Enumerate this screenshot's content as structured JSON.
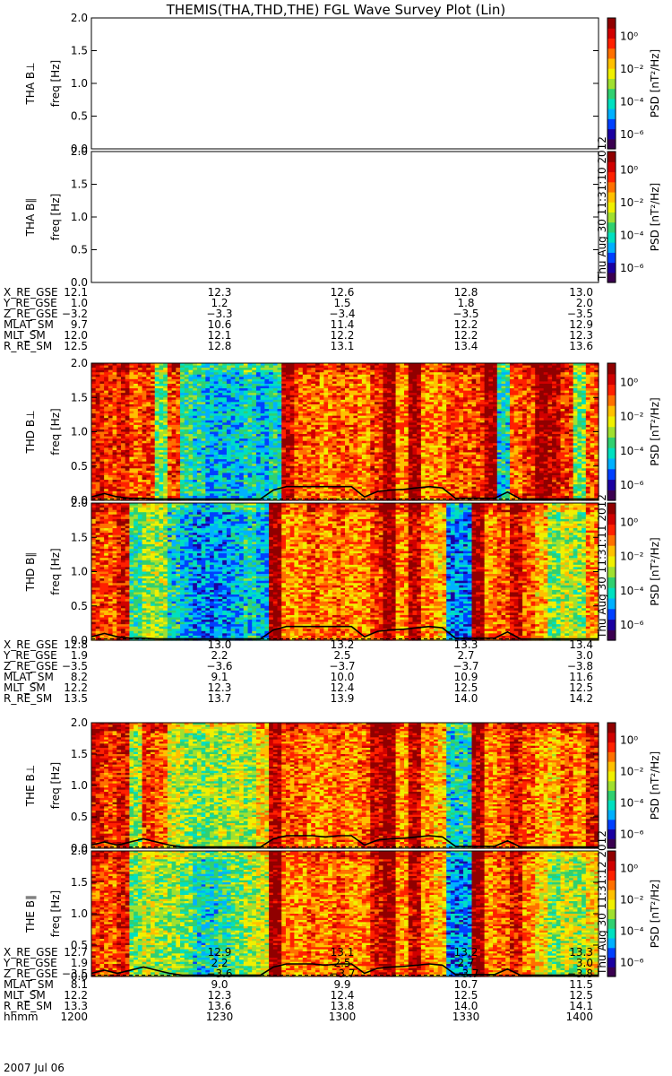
{
  "title": "THEMIS(THA,THD,THE) FGL Wave Survey Plot (Lin)",
  "date_label": "2007 Jul 06",
  "colors": {
    "colormap": [
      "#3a0050",
      "#1a00a0",
      "#0040ff",
      "#00b0ff",
      "#00e0c0",
      "#30d070",
      "#a0e030",
      "#f0f000",
      "#ffc000",
      "#ff7000",
      "#ff2000",
      "#d00000",
      "#900000"
    ],
    "curve": "#000000"
  },
  "chart_data": [
    {
      "type": "heatmap",
      "probe": "THA",
      "panel_label": "THA B⊥",
      "ylabel": "freq [Hz]",
      "y_ticks": [
        "0.0",
        "0.5",
        "1.0",
        "1.5",
        "2.0"
      ],
      "ylim": [
        0,
        2.0
      ],
      "colorbar_label": "PSD [nT²/Hz]",
      "colorbar_ticks": [
        "10⁰",
        "10⁻²",
        "10⁻⁴",
        "10⁻⁶"
      ],
      "has_data": false,
      "stamp": ""
    },
    {
      "type": "heatmap",
      "probe": "THA",
      "panel_label": "THA B∥",
      "ylabel": "freq [Hz]",
      "y_ticks": [
        "0.0",
        "0.5",
        "1.0",
        "1.5",
        "2.0"
      ],
      "ylim": [
        0,
        2.0
      ],
      "colorbar_label": "PSD [nT²/Hz]",
      "colorbar_ticks": [
        "10⁰",
        "10⁻²",
        "10⁻⁴",
        "10⁻⁶"
      ],
      "has_data": false,
      "stamp": "Thu Aug 30 11:31:10 2012"
    },
    {
      "type": "heatmap",
      "probe": "THD",
      "panel_label": "THD B⊥",
      "ylabel": "freq [Hz]",
      "y_ticks": [
        "0.0",
        "0.5",
        "1.0",
        "1.5",
        "2.0"
      ],
      "ylim": [
        0,
        2.0
      ],
      "colorbar_label": "PSD [nT²/Hz]",
      "colorbar_ticks": [
        "10⁰",
        "10⁻²",
        "10⁻⁴",
        "10⁻⁶"
      ],
      "has_data": true,
      "stamp": "",
      "column_profile": [
        0.85,
        0.8,
        0.85,
        0.75,
        0.8,
        0.45,
        0.8,
        0.4,
        0.35,
        0.3,
        0.3,
        0.3,
        0.35,
        0.3,
        0.35,
        0.9,
        0.75,
        0.75,
        0.7,
        0.75,
        0.75,
        0.7,
        0.8,
        0.95,
        0.7,
        0.95,
        0.7,
        0.7,
        0.8,
        0.75,
        0.8,
        0.95,
        0.35,
        0.75,
        0.8,
        0.95,
        0.9,
        0.8,
        0.45,
        0.75
      ],
      "curve": [
        0.05,
        0.1,
        0.05,
        0.03,
        0.03,
        0.02,
        0.02,
        0.02,
        0.02,
        0.02,
        0.02,
        0.02,
        0.02,
        0.02,
        0.15,
        0.2,
        0.2,
        0.2,
        0.2,
        0.2,
        0.2,
        0.05,
        0.13,
        0.15,
        0.16,
        0.18,
        0.2,
        0.18,
        0.03,
        0.03,
        0.03,
        0.03,
        0.12,
        0.02,
        0.02,
        0.02,
        0.02,
        0.02,
        0.02,
        0.02
      ],
      "dashed_level": 0.02
    },
    {
      "type": "heatmap",
      "probe": "THD",
      "panel_label": "THD B∥",
      "ylabel": "freq [Hz]",
      "y_ticks": [
        "0.0",
        "0.5",
        "1.0",
        "1.5",
        "2.0"
      ],
      "ylim": [
        0,
        2.0
      ],
      "colorbar_label": "PSD [nT²/Hz]",
      "colorbar_ticks": [
        "10⁰",
        "10⁻²",
        "10⁻⁴",
        "10⁻⁶"
      ],
      "has_data": true,
      "stamp": "Thu Aug 30 11:31:11 2012",
      "column_profile": [
        0.8,
        0.75,
        0.85,
        0.4,
        0.5,
        0.5,
        0.35,
        0.3,
        0.25,
        0.25,
        0.25,
        0.3,
        0.35,
        0.3,
        0.95,
        0.7,
        0.7,
        0.75,
        0.7,
        0.75,
        0.7,
        0.7,
        0.8,
        0.95,
        0.7,
        0.9,
        0.7,
        0.65,
        0.25,
        0.25,
        0.95,
        0.7,
        0.75,
        0.9,
        0.75,
        0.65,
        0.45,
        0.55,
        0.5,
        0.7
      ],
      "curve": [
        0.05,
        0.1,
        0.05,
        0.03,
        0.03,
        0.02,
        0.02,
        0.02,
        0.02,
        0.02,
        0.02,
        0.02,
        0.02,
        0.02,
        0.15,
        0.2,
        0.2,
        0.2,
        0.2,
        0.2,
        0.2,
        0.05,
        0.13,
        0.15,
        0.16,
        0.18,
        0.2,
        0.18,
        0.03,
        0.03,
        0.03,
        0.03,
        0.12,
        0.02,
        0.02,
        0.02,
        0.02,
        0.02,
        0.02,
        0.02
      ],
      "dashed_level": 0.02
    },
    {
      "type": "heatmap",
      "probe": "THE",
      "panel_label": "THE B⊥",
      "ylabel": "freq [Hz]",
      "y_ticks": [
        "0.0",
        "0.5",
        "1.0",
        "1.5",
        "2.0"
      ],
      "ylim": [
        0,
        2.0
      ],
      "colorbar_label": "PSD [nT²/Hz]",
      "colorbar_ticks": [
        "10⁰",
        "10⁻²",
        "10⁻⁴",
        "10⁻⁶"
      ],
      "has_data": true,
      "stamp": "",
      "column_profile": [
        0.85,
        0.8,
        0.85,
        0.5,
        0.8,
        0.75,
        0.55,
        0.5,
        0.45,
        0.5,
        0.5,
        0.55,
        0.5,
        0.6,
        0.9,
        0.75,
        0.75,
        0.7,
        0.7,
        0.75,
        0.7,
        0.75,
        0.9,
        0.95,
        0.7,
        0.9,
        0.7,
        0.65,
        0.35,
        0.35,
        0.9,
        0.7,
        0.75,
        0.85,
        0.75,
        0.7,
        0.65,
        0.75,
        0.7,
        0.85
      ],
      "curve": [
        0.05,
        0.1,
        0.05,
        0.1,
        0.15,
        0.1,
        0.05,
        0.02,
        0.02,
        0.02,
        0.02,
        0.02,
        0.02,
        0.02,
        0.15,
        0.2,
        0.2,
        0.2,
        0.18,
        0.2,
        0.2,
        0.05,
        0.13,
        0.15,
        0.16,
        0.18,
        0.2,
        0.18,
        0.03,
        0.03,
        0.03,
        0.03,
        0.12,
        0.02,
        0.02,
        0.02,
        0.02,
        0.02,
        0.02,
        0.02
      ],
      "dashed_level": 0.02
    },
    {
      "type": "heatmap",
      "probe": "THE",
      "panel_label": "THE B∥",
      "ylabel": "freq [Hz]",
      "y_ticks": [
        "0.0",
        "0.5",
        "1.0",
        "1.5",
        "2.0"
      ],
      "ylim": [
        0,
        2.0
      ],
      "colorbar_label": "PSD [nT²/Hz]",
      "colorbar_ticks": [
        "10⁰",
        "10⁻²",
        "10⁻⁴",
        "10⁻⁶"
      ],
      "has_data": true,
      "stamp": "Thu Aug 30 11:31:12 2012",
      "column_profile": [
        0.8,
        0.75,
        0.85,
        0.45,
        0.55,
        0.5,
        0.5,
        0.45,
        0.35,
        0.35,
        0.4,
        0.45,
        0.5,
        0.55,
        0.95,
        0.7,
        0.7,
        0.75,
        0.7,
        0.75,
        0.7,
        0.7,
        0.85,
        0.95,
        0.7,
        0.9,
        0.7,
        0.65,
        0.25,
        0.25,
        0.95,
        0.7,
        0.75,
        0.85,
        0.7,
        0.6,
        0.45,
        0.55,
        0.5,
        0.6
      ],
      "curve": [
        0.05,
        0.1,
        0.05,
        0.1,
        0.15,
        0.1,
        0.05,
        0.02,
        0.02,
        0.02,
        0.02,
        0.02,
        0.02,
        0.02,
        0.15,
        0.2,
        0.2,
        0.2,
        0.18,
        0.2,
        0.2,
        0.05,
        0.13,
        0.15,
        0.16,
        0.18,
        0.2,
        0.18,
        0.03,
        0.03,
        0.03,
        0.03,
        0.12,
        0.02,
        0.02,
        0.02,
        0.02,
        0.02,
        0.02,
        0.02
      ],
      "dashed_level": 0.02
    }
  ],
  "ephemeris": [
    {
      "probe": "THA",
      "rows": [
        {
          "label": "X_RE_GSE",
          "values": [
            "12.1",
            "12.3",
            "12.6",
            "12.8",
            "13.0"
          ]
        },
        {
          "label": "Y_RE_GSE",
          "values": [
            "1.0",
            "1.2",
            "1.5",
            "1.8",
            "2.0"
          ]
        },
        {
          "label": "Z_RE_GSE",
          "values": [
            "−3.2",
            "−3.3",
            "−3.4",
            "−3.5",
            "−3.5"
          ]
        },
        {
          "label": "MLAT_SM",
          "values": [
            "9.7",
            "10.6",
            "11.4",
            "12.2",
            "12.9"
          ]
        },
        {
          "label": "MLT_SM",
          "values": [
            "12.0",
            "12.1",
            "12.2",
            "12.2",
            "12.3"
          ]
        },
        {
          "label": "R_RE_SM",
          "values": [
            "12.5",
            "12.8",
            "13.1",
            "13.4",
            "13.6"
          ]
        }
      ]
    },
    {
      "probe": "THD",
      "rows": [
        {
          "label": "X_RE_GSE",
          "values": [
            "12.8",
            "13.0",
            "13.2",
            "13.3",
            "13.4"
          ]
        },
        {
          "label": "Y_RE_GSE",
          "values": [
            "1.9",
            "2.2",
            "2.5",
            "2.7",
            "3.0"
          ]
        },
        {
          "label": "Z_RE_GSE",
          "values": [
            "−3.5",
            "−3.6",
            "−3.7",
            "−3.7",
            "−3.8"
          ]
        },
        {
          "label": "MLAT_SM",
          "values": [
            "8.2",
            "9.1",
            "10.0",
            "10.9",
            "11.6"
          ]
        },
        {
          "label": "MLT_SM",
          "values": [
            "12.2",
            "12.3",
            "12.4",
            "12.5",
            "12.5"
          ]
        },
        {
          "label": "R_RE_SM",
          "values": [
            "13.5",
            "13.7",
            "13.9",
            "14.0",
            "14.2"
          ]
        }
      ]
    },
    {
      "probe": "THE",
      "rows": [
        {
          "label": "X_RE_GSE",
          "values": [
            "12.7",
            "12.9",
            "13.1",
            "13.2",
            "13.3"
          ]
        },
        {
          "label": "Y_RE_GSE",
          "values": [
            "1.9",
            "2.2",
            "2.5",
            "2.7",
            "3.0"
          ]
        },
        {
          "label": "Z_RE_GSE",
          "values": [
            "−3.5",
            "−3.6",
            "−3.7",
            "−3.7",
            "−3.8"
          ]
        },
        {
          "label": "MLAT_SM",
          "values": [
            "8.1",
            "9.0",
            "9.9",
            "10.7",
            "11.5"
          ]
        },
        {
          "label": "MLT_SM",
          "values": [
            "12.2",
            "12.3",
            "12.4",
            "12.5",
            "12.5"
          ]
        },
        {
          "label": "R_RE_SM",
          "values": [
            "13.3",
            "13.6",
            "13.8",
            "14.0",
            "14.1"
          ]
        },
        {
          "label": "hhmm",
          "values": [
            "1200",
            "1230",
            "1300",
            "1330",
            "1400"
          ]
        }
      ]
    }
  ]
}
